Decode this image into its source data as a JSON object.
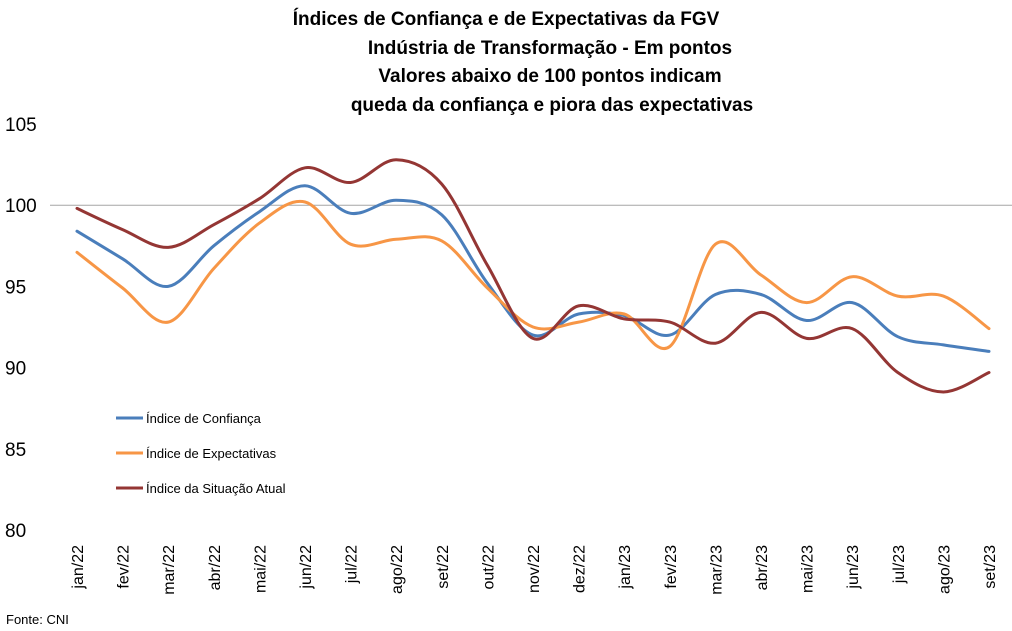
{
  "chart_data": {
    "type": "line",
    "title_lines": [
      "Índices de Confiança e de Expectativas da FGV",
      "Indústria de Transformação - Em pontos",
      "Valores abaixo de 100 pontos indicam",
      "queda da confiança e piora das expectativas"
    ],
    "categories": [
      "jan/22",
      "fev/22",
      "mar/22",
      "abr/22",
      "mai/22",
      "jun/22",
      "jul/22",
      "ago/22",
      "set/22",
      "out/22",
      "nov/22",
      "dez/22",
      "jan/23",
      "fev/23",
      "mar/23",
      "abr/23",
      "mai/23",
      "jun/23",
      "jul/23",
      "ago/23",
      "set/23"
    ],
    "yticks": [
      "80",
      "85",
      "90",
      "95",
      "100",
      "105"
    ],
    "ylim": [
      80,
      105
    ],
    "reference_line": 100,
    "series": [
      {
        "name": "Índice de Confiança",
        "color": "#4a7ebb",
        "values": [
          98.4,
          96.7,
          95.0,
          97.5,
          99.6,
          101.2,
          99.5,
          100.3,
          99.4,
          95.2,
          92.0,
          93.3,
          93.2,
          92.0,
          94.5,
          94.5,
          92.9,
          94.0,
          91.9,
          91.4,
          91.0
        ]
      },
      {
        "name": "Índice de Expectativas",
        "color": "#f79646",
        "values": [
          97.1,
          94.9,
          92.8,
          96.1,
          98.9,
          100.2,
          97.6,
          97.9,
          97.8,
          94.9,
          92.5,
          92.8,
          93.3,
          91.3,
          97.6,
          95.7,
          94.0,
          95.6,
          94.4,
          94.4,
          92.4
        ]
      },
      {
        "name": "Índice da Situação Atual",
        "color": "#943634",
        "values": [
          99.8,
          98.5,
          97.4,
          98.8,
          100.4,
          102.3,
          101.4,
          102.8,
          101.3,
          96.3,
          91.8,
          93.8,
          93.0,
          92.8,
          91.5,
          93.4,
          91.8,
          92.4,
          89.7,
          88.5,
          89.7
        ]
      }
    ],
    "grid": false,
    "legend_position": "left"
  },
  "source": "Fonte: CNI"
}
